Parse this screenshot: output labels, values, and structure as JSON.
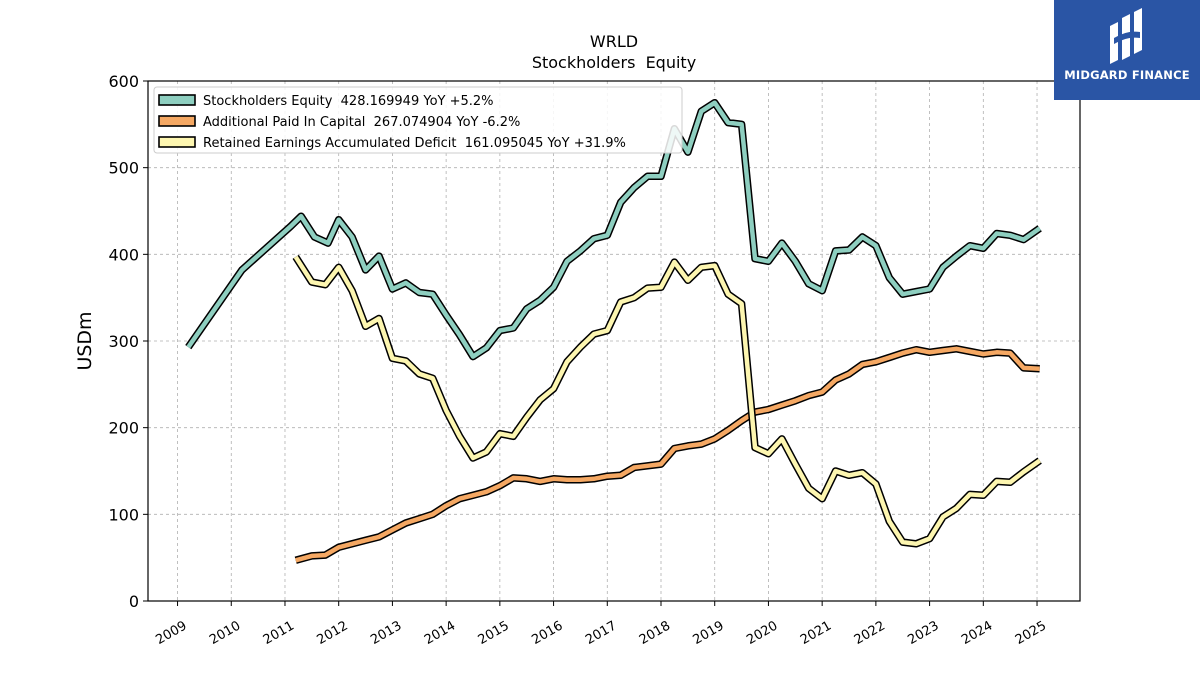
{
  "brand": {
    "name": "MIDGARD FINANCE",
    "logo_icon": "midgard-logo-icon",
    "background": "#2a55a5"
  },
  "chart_data": {
    "type": "line",
    "title": "WRLD",
    "subtitle": "Stockholders  Equity",
    "ylabel": "USDm",
    "xlabel": "",
    "ylim": [
      0,
      600
    ],
    "xlim": [
      2008.45,
      2025.8
    ],
    "yticks": [
      0,
      100,
      200,
      300,
      400,
      500,
      600
    ],
    "xticks": [
      "2009",
      "2010",
      "2011",
      "2012",
      "2013",
      "2014",
      "2015",
      "2016",
      "2017",
      "2018",
      "2019",
      "2020",
      "2021",
      "2022",
      "2023",
      "2024",
      "2025"
    ],
    "grid": true,
    "legend_position": "top-left",
    "series": [
      {
        "name": "Stockholders Equity",
        "legend": "Stockholders Equity  428.169949 YoY +5.2%",
        "color": "#8ecfc0",
        "x": [
          2009.2,
          2010.2,
          2011.1,
          2011.3,
          2011.55,
          2011.8,
          2012.0,
          2012.25,
          2012.5,
          2012.75,
          2013.0,
          2013.25,
          2013.5,
          2013.75,
          2014.0,
          2014.25,
          2014.5,
          2014.75,
          2015.0,
          2015.25,
          2015.5,
          2015.75,
          2016.0,
          2016.25,
          2016.5,
          2016.75,
          2017.0,
          2017.25,
          2017.5,
          2017.75,
          2018.0,
          2018.25,
          2018.5,
          2018.75,
          2019.0,
          2019.25,
          2019.5,
          2019.75,
          2020.0,
          2020.25,
          2020.5,
          2020.75,
          2021.0,
          2021.25,
          2021.5,
          2021.75,
          2022.0,
          2022.25,
          2022.5,
          2022.75,
          2023.0,
          2023.25,
          2023.5,
          2023.75,
          2024.0,
          2024.25,
          2024.5,
          2024.75,
          2025.05
        ],
        "values": [
          293,
          382,
          432,
          444,
          420,
          413,
          440,
          420,
          382,
          398,
          360,
          367,
          356,
          354,
          330,
          307,
          282,
          292,
          312,
          315,
          337,
          347,
          362,
          392,
          404,
          418,
          422,
          460,
          477,
          490,
          490,
          545,
          518,
          565,
          575,
          552,
          550,
          395,
          392,
          413,
          392,
          366,
          358,
          404,
          405,
          420,
          410,
          373,
          354,
          357,
          360,
          385,
          398,
          410,
          407,
          424,
          422,
          417,
          430
        ]
      },
      {
        "name": "Additional Paid In Capital",
        "legend": "Additional Paid In Capital  267.074904 YoY -6.2%",
        "color": "#f5a863",
        "x": [
          2011.2,
          2011.5,
          2011.75,
          2012.0,
          2012.25,
          2012.5,
          2012.75,
          2013.0,
          2013.25,
          2013.5,
          2013.75,
          2014.0,
          2014.25,
          2014.5,
          2014.75,
          2015.0,
          2015.25,
          2015.5,
          2015.75,
          2016.0,
          2016.25,
          2016.5,
          2016.75,
          2017.0,
          2017.25,
          2017.5,
          2017.75,
          2018.0,
          2018.25,
          2018.5,
          2018.75,
          2019.0,
          2019.25,
          2019.5,
          2019.75,
          2020.0,
          2020.25,
          2020.5,
          2020.75,
          2021.0,
          2021.25,
          2021.5,
          2021.75,
          2022.0,
          2022.25,
          2022.5,
          2022.75,
          2023.0,
          2023.25,
          2023.5,
          2023.75,
          2024.0,
          2024.25,
          2024.5,
          2024.75,
          2025.05
        ],
        "values": [
          47,
          52,
          53,
          62,
          66,
          70,
          74,
          82,
          90,
          95,
          100,
          110,
          118,
          122,
          126,
          133,
          142,
          141,
          138,
          141,
          140,
          140,
          141,
          144,
          145,
          154,
          156,
          158,
          176,
          179,
          181,
          187,
          197,
          208,
          218,
          221,
          226,
          231,
          237,
          241,
          255,
          262,
          273,
          276,
          281,
          286,
          290,
          287,
          289,
          291,
          288,
          285,
          287,
          286,
          269,
          268
        ]
      },
      {
        "name": "Retained Earnings Accumulated Deficit",
        "legend": "Retained Earnings Accumulated Deficit  161.095045 YoY +31.9%",
        "color": "#fdf6b0",
        "x": [
          2011.2,
          2011.5,
          2011.75,
          2012.0,
          2012.25,
          2012.5,
          2012.75,
          2013.0,
          2013.25,
          2013.5,
          2013.75,
          2014.0,
          2014.25,
          2014.5,
          2014.75,
          2015.0,
          2015.25,
          2015.5,
          2015.75,
          2016.0,
          2016.25,
          2016.5,
          2016.75,
          2017.0,
          2017.25,
          2017.5,
          2017.75,
          2018.0,
          2018.25,
          2018.5,
          2018.75,
          2019.0,
          2019.25,
          2019.5,
          2019.75,
          2020.0,
          2020.25,
          2020.5,
          2020.75,
          2021.0,
          2021.25,
          2021.5,
          2021.75,
          2022.0,
          2022.25,
          2022.5,
          2022.75,
          2023.0,
          2023.25,
          2023.5,
          2023.75,
          2024.0,
          2024.25,
          2024.5,
          2024.75,
          2025.05
        ],
        "values": [
          397,
          368,
          365,
          385,
          358,
          317,
          326,
          280,
          277,
          262,
          257,
          220,
          190,
          165,
          172,
          193,
          190,
          212,
          232,
          245,
          276,
          293,
          308,
          312,
          345,
          350,
          361,
          362,
          391,
          370,
          385,
          387,
          354,
          343,
          177,
          170,
          187,
          158,
          130,
          118,
          150,
          145,
          148,
          135,
          92,
          68,
          66,
          72,
          97,
          107,
          123,
          122,
          138,
          137,
          149,
          162
        ]
      }
    ]
  }
}
